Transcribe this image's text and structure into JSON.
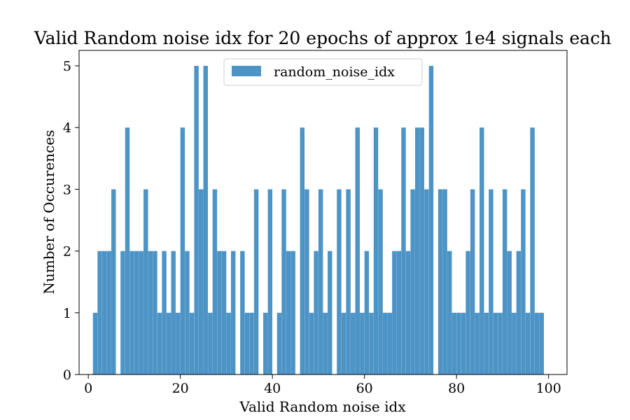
{
  "chart_data": {
    "type": "bar",
    "title": "Valid Random noise idx for 20 epochs of approx 1e4 signals each",
    "xlabel": "Valid Random noise idx",
    "ylabel": "Number of Occurences",
    "xlim": [
      -2,
      104
    ],
    "ylim": [
      0,
      5.25
    ],
    "xticks": [
      0,
      20,
      40,
      60,
      80,
      100
    ],
    "yticks": [
      0,
      1,
      2,
      3,
      4,
      5
    ],
    "grid": false,
    "legend": {
      "position": "top-center",
      "entries": [
        "random_noise_idx"
      ]
    },
    "series": [
      {
        "name": "random_noise_idx",
        "color": "#4d94c6",
        "bin_width": 0.98,
        "x": [
          1,
          2,
          3,
          4,
          5,
          7,
          8,
          9,
          10,
          11,
          12,
          13,
          14,
          15,
          16,
          17,
          18,
          19,
          20,
          21,
          22,
          23,
          24,
          25,
          26,
          27,
          28,
          29,
          30,
          31,
          33,
          34,
          35,
          36,
          38,
          39,
          41,
          42,
          43,
          44,
          46,
          47,
          48,
          49,
          50,
          51,
          52,
          54,
          55,
          56,
          57,
          58,
          59,
          60,
          61,
          62,
          63,
          64,
          65,
          66,
          67,
          68,
          69,
          70,
          71,
          72,
          73,
          74,
          76,
          77,
          78,
          79,
          80,
          81,
          82,
          83,
          84,
          85,
          86,
          87,
          88,
          89,
          90,
          91,
          92,
          93,
          94,
          95,
          96,
          97,
          98
        ],
        "values": [
          1,
          2,
          2,
          2,
          3,
          2,
          4,
          2,
          2,
          2,
          3,
          2,
          2,
          1,
          2,
          1,
          2,
          1,
          4,
          2,
          1,
          5,
          3,
          5,
          1,
          3,
          2,
          2,
          1,
          2,
          2,
          1,
          1,
          3,
          1,
          3,
          1,
          3,
          2,
          2,
          4,
          3,
          1,
          2,
          3,
          1,
          2,
          3,
          1,
          3,
          1,
          4,
          1,
          2,
          1,
          4,
          3,
          1,
          1,
          2,
          2,
          4,
          2,
          3,
          4,
          4,
          3,
          5,
          3,
          3,
          2,
          1,
          1,
          1,
          2,
          3,
          1,
          4,
          1,
          3,
          1,
          1,
          3,
          2,
          1,
          2,
          3,
          1,
          4,
          1,
          1
        ]
      }
    ]
  }
}
